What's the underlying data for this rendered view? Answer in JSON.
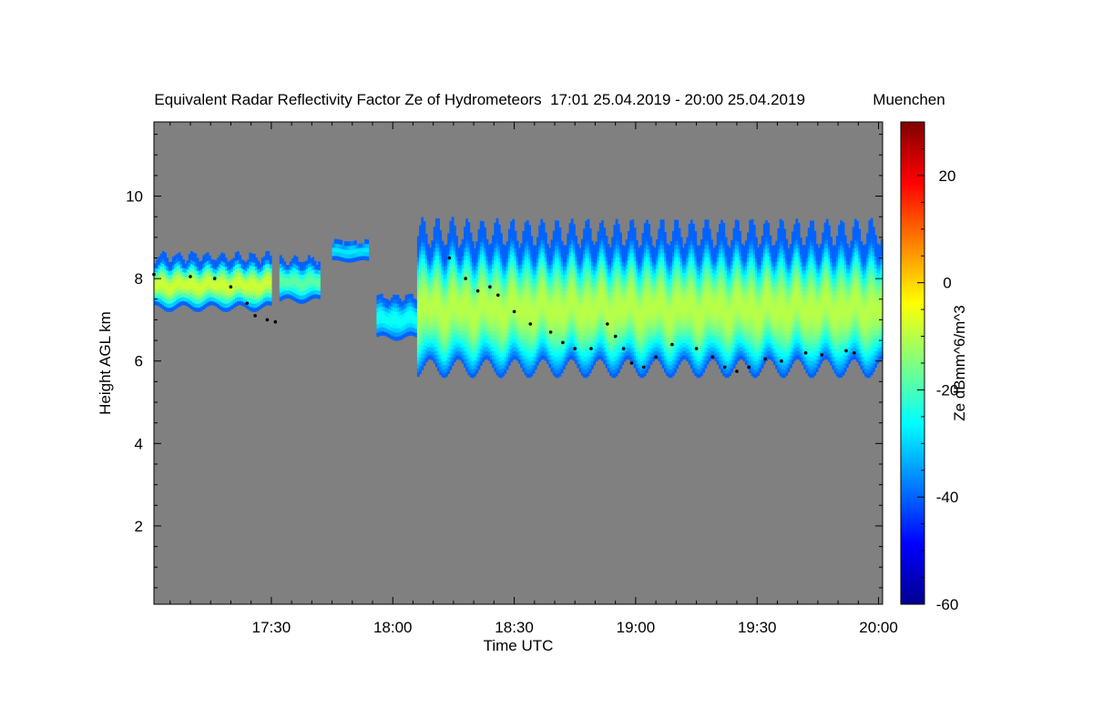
{
  "chart_data": {
    "type": "heatmap",
    "title": "Equivalent Radar Reflectivity Factor Ze of Hydrometeors",
    "time_range": "17:01 25.04.2019 - 20:00 25.04.2019",
    "location": "Muenchen",
    "xlabel": "Time UTC",
    "ylabel": "Height AGL km",
    "xlim_min": [
      1021,
      1201
    ],
    "ylim_km": [
      0.1,
      11.8
    ],
    "x_ticks": [
      {
        "min": 1050,
        "label": "17:30"
      },
      {
        "min": 1080,
        "label": "18:00"
      },
      {
        "min": 1110,
        "label": "18:30"
      },
      {
        "min": 1140,
        "label": "19:00"
      },
      {
        "min": 1170,
        "label": "19:30"
      },
      {
        "min": 1200,
        "label": "20:00"
      }
    ],
    "y_ticks": [
      2,
      4,
      6,
      8,
      10
    ],
    "colorbar": {
      "label": "Ze dBmm^6/m^3",
      "range": [
        -60,
        30
      ],
      "ticks": [
        -60,
        -40,
        -20,
        0,
        20
      ]
    },
    "background_color": "#808080",
    "cloud_regions": [
      {
        "t_start": 1021,
        "t_end": 1050,
        "base_km": 7.2,
        "top_km": 8.6,
        "peak_ze": -8
      },
      {
        "t_start": 1052,
        "t_end": 1062,
        "base_km": 7.4,
        "top_km": 8.5,
        "peak_ze": -18
      },
      {
        "t_start": 1065,
        "t_end": 1074,
        "base_km": 8.4,
        "top_km": 8.9,
        "peak_ze": -28
      },
      {
        "t_start": 1076,
        "t_end": 1086,
        "base_km": 6.5,
        "top_km": 7.6,
        "peak_ze": -25
      },
      {
        "t_start": 1086,
        "t_end": 1201,
        "base_km": 5.6,
        "top_km": 9.4,
        "peak_ze": -10
      }
    ],
    "series": [
      {
        "name": "cloud base",
        "x_min": [
          1021,
          1030,
          1036,
          1040,
          1044,
          1046,
          1049,
          1051,
          1094,
          1098,
          1101,
          1104,
          1106,
          1110,
          1114,
          1119,
          1122,
          1125,
          1129,
          1133,
          1135,
          1137,
          1139,
          1142,
          1145,
          1149,
          1155,
          1159,
          1162,
          1165,
          1168,
          1172,
          1176,
          1182,
          1186,
          1192,
          1194
        ],
        "y_km": [
          8.1,
          8.05,
          8.0,
          7.8,
          7.4,
          7.1,
          7.0,
          6.95,
          8.5,
          8.0,
          7.7,
          7.8,
          7.6,
          7.2,
          6.9,
          6.7,
          6.45,
          6.3,
          6.3,
          6.9,
          6.6,
          6.3,
          5.95,
          5.85,
          6.1,
          6.4,
          6.3,
          6.1,
          5.85,
          5.75,
          5.85,
          6.05,
          6.0,
          6.2,
          6.15,
          6.25,
          6.2
        ]
      }
    ]
  }
}
